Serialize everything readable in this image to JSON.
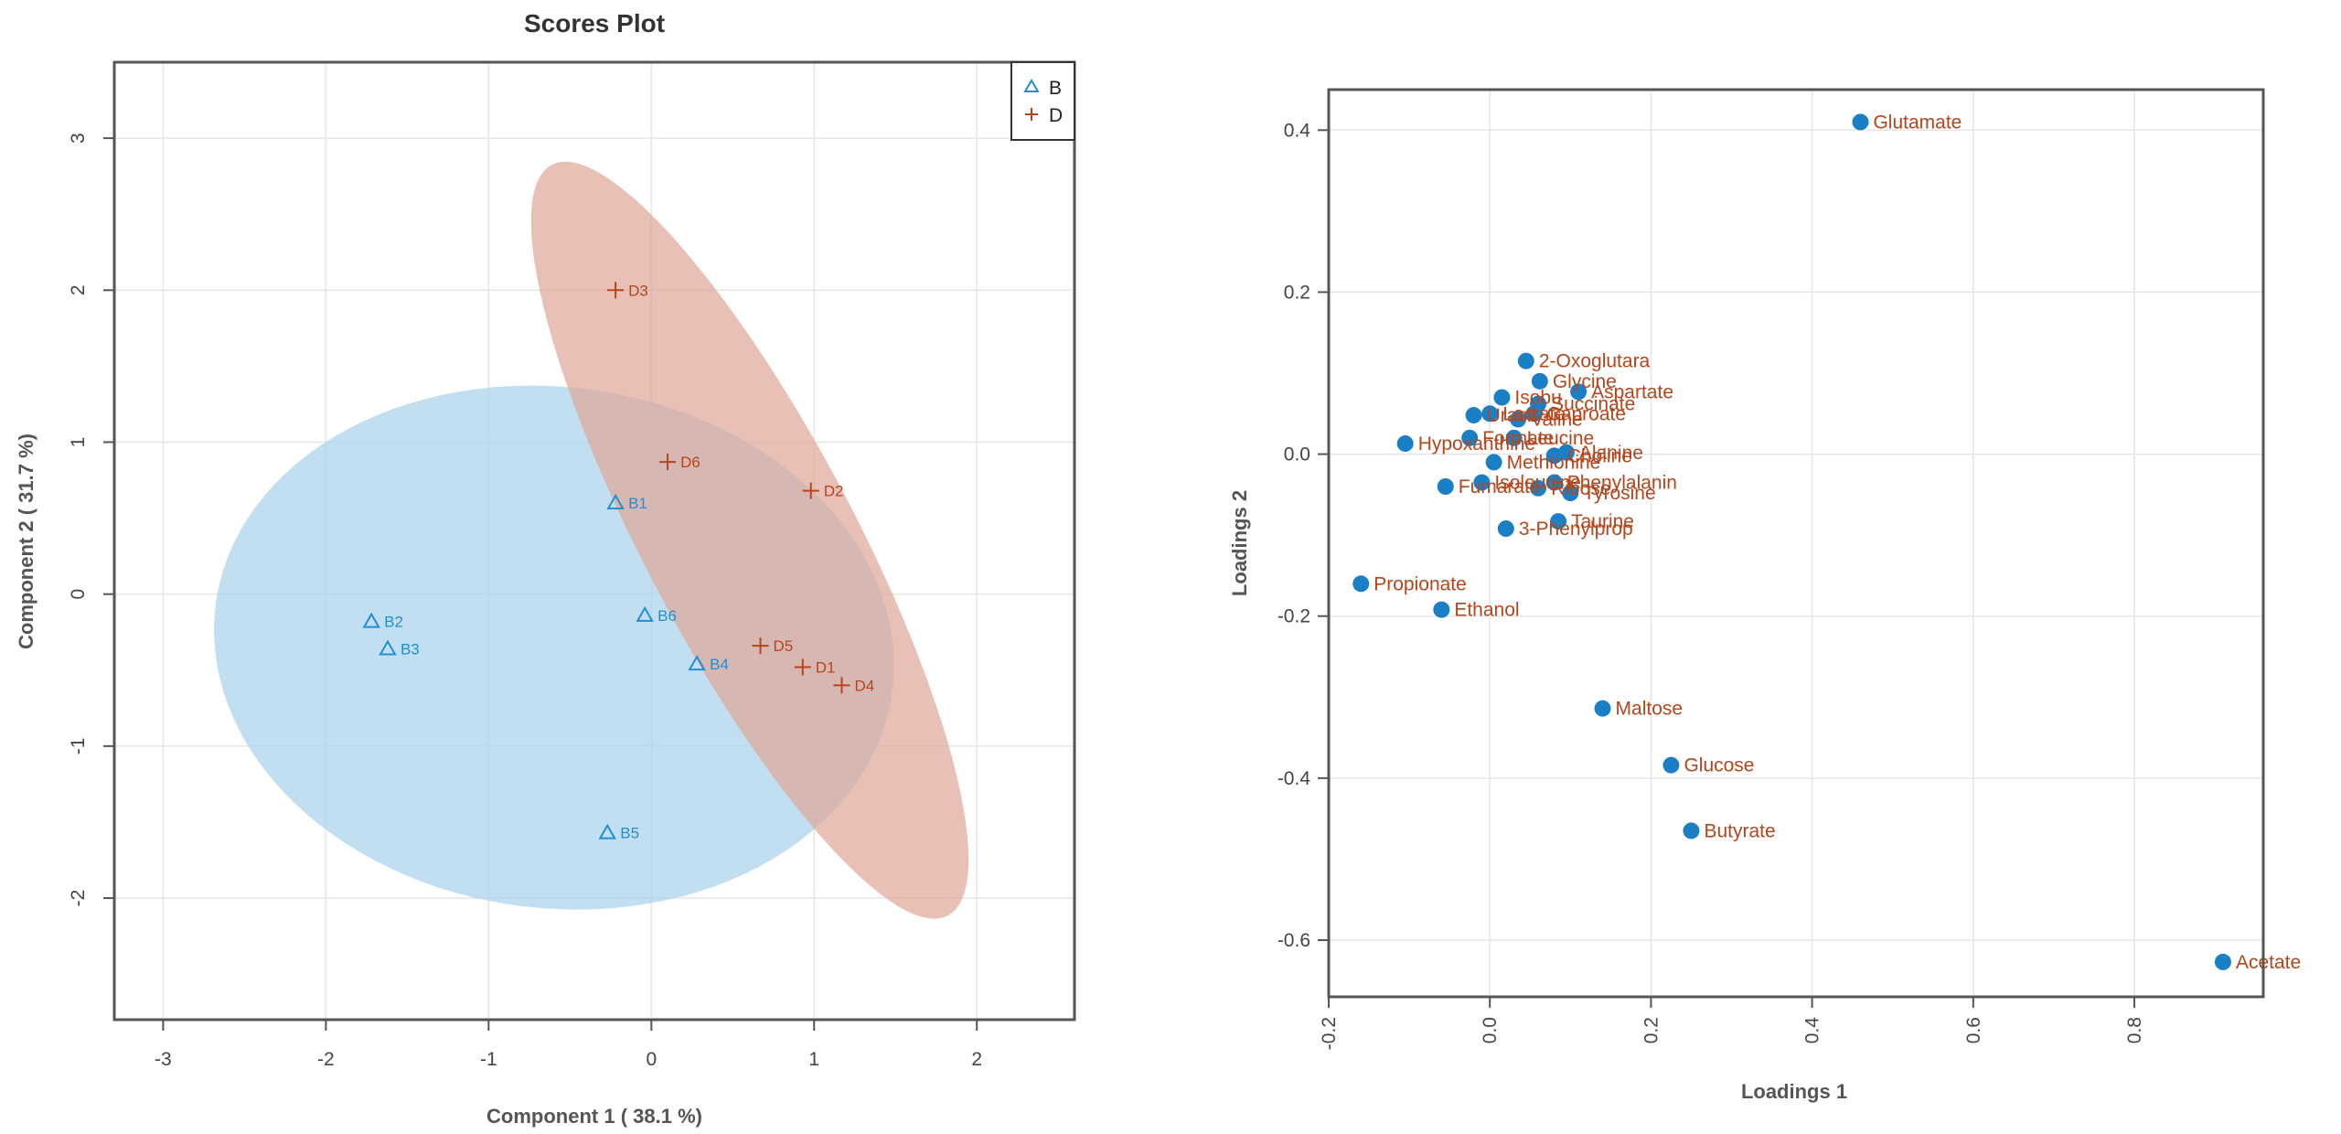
{
  "chart_data": [
    {
      "type": "scatter",
      "title": "Scores Plot",
      "xlabel": "Component 1 ( 38.1 %)",
      "ylabel": "Component 2 ( 31.7 %)",
      "xlim": [
        -3.3,
        2.6
      ],
      "ylim": [
        -2.8,
        3.5
      ],
      "xticks": [
        "-3",
        "-2",
        "-1",
        "0",
        "1",
        "2"
      ],
      "yticks": [
        "-2",
        "-1",
        "0",
        "1",
        "2",
        "3"
      ],
      "grid": true,
      "legend_position": "top-right",
      "series": [
        {
          "name": "B",
          "marker": "triangle",
          "color": "#1f8fd6",
          "ellipse_fill": "#a9d2ec",
          "points": [
            {
              "label": "B1",
              "x": -0.22,
              "y": 0.6
            },
            {
              "label": "B2",
              "x": -1.72,
              "y": -0.18
            },
            {
              "label": "B3",
              "x": -1.62,
              "y": -0.36
            },
            {
              "label": "B4",
              "x": 0.28,
              "y": -0.46
            },
            {
              "label": "B5",
              "x": -0.27,
              "y": -1.57
            },
            {
              "label": "B6",
              "x": -0.04,
              "y": -0.14
            }
          ]
        },
        {
          "name": "D",
          "marker": "plus",
          "color": "#b5451b",
          "ellipse_fill": "#dfa898",
          "points": [
            {
              "label": "D1",
              "x": 0.93,
              "y": -0.48
            },
            {
              "label": "D2",
              "x": 0.98,
              "y": 0.68
            },
            {
              "label": "D3",
              "x": -0.22,
              "y": 2.0
            },
            {
              "label": "D4",
              "x": 1.17,
              "y": -0.6
            },
            {
              "label": "D5",
              "x": 0.67,
              "y": -0.34
            },
            {
              "label": "D6",
              "x": 0.1,
              "y": 0.87
            }
          ]
        }
      ]
    },
    {
      "type": "scatter",
      "title": "",
      "xlabel": "Loadings 1",
      "ylabel": "Loadings 2",
      "xlim": [
        -0.2,
        0.96
      ],
      "ylim": [
        -0.67,
        0.45
      ],
      "xticks": [
        "-0.2",
        "0.0",
        "0.2",
        "0.4",
        "0.6",
        "0.8"
      ],
      "yticks": [
        "-0.6",
        "-0.4",
        "-0.2",
        "0.0",
        "0.2",
        "0.4"
      ],
      "grid": true,
      "point_color": "#1a7fc4",
      "label_color": "#b5451b",
      "points": [
        {
          "label": "Glutamate",
          "x": 0.46,
          "y": 0.41
        },
        {
          "label": "2-Oxoglutara",
          "x": 0.045,
          "y": 0.115
        },
        {
          "label": "Glycine",
          "x": 0.062,
          "y": 0.09
        },
        {
          "label": "Isobu",
          "x": 0.015,
          "y": 0.07
        },
        {
          "label": "Aspartate",
          "x": 0.11,
          "y": 0.077
        },
        {
          "label": "Succinate",
          "x": 0.06,
          "y": 0.062
        },
        {
          "label": "Caproate",
          "x": 0.055,
          "y": 0.05
        },
        {
          "label": "Uracil",
          "x": -0.02,
          "y": 0.048
        },
        {
          "label": "Valine",
          "x": 0.035,
          "y": 0.043
        },
        {
          "label": "Lactate",
          "x": 0.0,
          "y": 0.05
        },
        {
          "label": "Hypoxanthine",
          "x": -0.105,
          "y": 0.013
        },
        {
          "label": "Alanine",
          "x": 0.095,
          "y": 0.002
        },
        {
          "label": "Choline",
          "x": 0.08,
          "y": -0.002
        },
        {
          "label": "Leucine",
          "x": 0.03,
          "y": 0.02
        },
        {
          "label": "Formate",
          "x": -0.025,
          "y": 0.02
        },
        {
          "label": "Methionine",
          "x": 0.005,
          "y": -0.01
        },
        {
          "label": "Isoleucine",
          "x": -0.01,
          "y": -0.035
        },
        {
          "label": "Phenylalanin",
          "x": 0.08,
          "y": -0.035
        },
        {
          "label": "Tyrosine",
          "x": 0.1,
          "y": -0.048
        },
        {
          "label": "Fumarate",
          "x": -0.055,
          "y": -0.04
        },
        {
          "label": "Ribose",
          "x": 0.06,
          "y": -0.042
        },
        {
          "label": "Taurine",
          "x": 0.085,
          "y": -0.083
        },
        {
          "label": "3-Phenylprop",
          "x": 0.02,
          "y": -0.092
        },
        {
          "label": "Propionate",
          "x": -0.16,
          "y": -0.16
        },
        {
          "label": "Ethanol",
          "x": -0.06,
          "y": -0.192
        },
        {
          "label": "Maltose",
          "x": 0.14,
          "y": -0.314
        },
        {
          "label": "Glucose",
          "x": 0.225,
          "y": -0.384
        },
        {
          "label": "Butyrate",
          "x": 0.25,
          "y": -0.465
        },
        {
          "label": "Acetate",
          "x": 0.91,
          "y": -0.627
        }
      ]
    }
  ]
}
